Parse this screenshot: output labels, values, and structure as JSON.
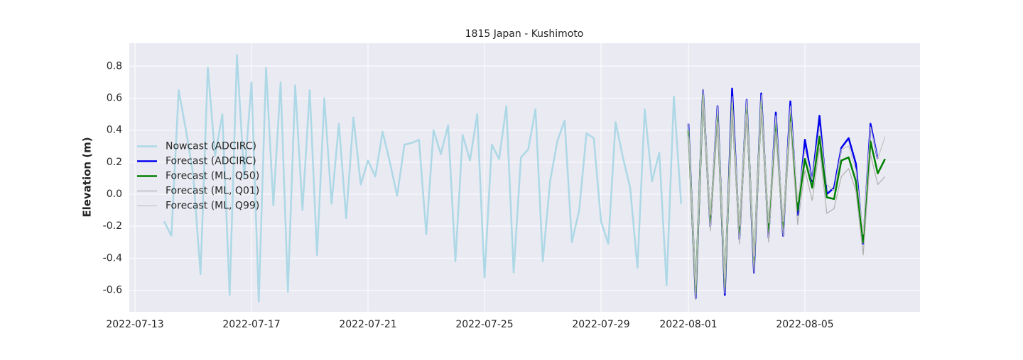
{
  "chart_data": {
    "type": "line",
    "title": "1815 Japan - Kushimoto",
    "ylabel": "Elevation (m)",
    "xlim": [
      "2022-07-12T19:19",
      "2022-08-08T22:48"
    ],
    "xticks": [
      "2022-07-13",
      "2022-07-17",
      "2022-07-21",
      "2022-07-25",
      "2022-07-29",
      "2022-08-01",
      "2022-08-05"
    ],
    "ylim": [
      -0.735,
      0.943
    ],
    "yticks": [
      -0.6,
      -0.4,
      -0.2,
      {
        "value": 0,
        "label": "0.0"
      },
      0.2,
      0.4,
      0.6,
      0.8
    ],
    "grid": true,
    "legend": "center left",
    "series": [
      {
        "name": "Nowcast (ADCIRC)",
        "color": "#add8e6",
        "linewidth": 2.5,
        "x": [
          "2022-07-14T00:00",
          "2022-07-14T06:00",
          "2022-07-14T12:00",
          "2022-07-14T18:00",
          "2022-07-15T00:00",
          "2022-07-15T06:00",
          "2022-07-15T12:00",
          "2022-07-15T18:00",
          "2022-07-16T00:00",
          "2022-07-16T06:00",
          "2022-07-16T12:00",
          "2022-07-16T18:00",
          "2022-07-17T00:00",
          "2022-07-17T06:00",
          "2022-07-17T12:00",
          "2022-07-17T18:00",
          "2022-07-18T00:00",
          "2022-07-18T06:00",
          "2022-07-18T12:00",
          "2022-07-18T18:00",
          "2022-07-19T00:00",
          "2022-07-19T06:00",
          "2022-07-19T12:00",
          "2022-07-19T18:00",
          "2022-07-20T00:00",
          "2022-07-20T06:00",
          "2022-07-20T12:00",
          "2022-07-20T18:00",
          "2022-07-21T00:00",
          "2022-07-21T06:00",
          "2022-07-21T12:00",
          "2022-07-21T18:00",
          "2022-07-22T00:00",
          "2022-07-22T06:00",
          "2022-07-22T12:00",
          "2022-07-22T18:00",
          "2022-07-23T00:00",
          "2022-07-23T06:00",
          "2022-07-23T12:00",
          "2022-07-23T18:00",
          "2022-07-24T00:00",
          "2022-07-24T06:00",
          "2022-07-24T12:00",
          "2022-07-24T18:00",
          "2022-07-25T00:00",
          "2022-07-25T06:00",
          "2022-07-25T12:00",
          "2022-07-25T18:00",
          "2022-07-26T00:00",
          "2022-07-26T06:00",
          "2022-07-26T12:00",
          "2022-07-26T18:00",
          "2022-07-27T00:00",
          "2022-07-27T06:00",
          "2022-07-27T12:00",
          "2022-07-27T18:00",
          "2022-07-28T00:00",
          "2022-07-28T06:00",
          "2022-07-28T12:00",
          "2022-07-28T18:00",
          "2022-07-29T00:00",
          "2022-07-29T06:00",
          "2022-07-29T12:00",
          "2022-07-29T18:00",
          "2022-07-30T00:00",
          "2022-07-30T06:00",
          "2022-07-30T12:00",
          "2022-07-30T18:00",
          "2022-07-31T00:00",
          "2022-07-31T06:00",
          "2022-07-31T12:00",
          "2022-07-31T18:00"
        ],
        "values": [
          -0.17,
          -0.26,
          0.65,
          0.4,
          0.12,
          -0.5,
          0.79,
          0.24,
          0.5,
          -0.63,
          0.87,
          0.1,
          0.7,
          -0.67,
          0.79,
          -0.07,
          0.7,
          -0.61,
          0.68,
          -0.1,
          0.65,
          -0.38,
          0.6,
          -0.06,
          0.44,
          -0.15,
          0.48,
          0.06,
          0.21,
          0.11,
          0.39,
          0.2,
          -0.01,
          0.31,
          0.32,
          0.34,
          -0.25,
          0.4,
          0.25,
          0.43,
          -0.42,
          0.37,
          0.21,
          0.5,
          -0.52,
          0.31,
          0.22,
          0.55,
          -0.49,
          0.23,
          0.28,
          0.53,
          -0.42,
          0.08,
          0.33,
          0.46,
          -0.3,
          -0.1,
          0.38,
          0.35,
          -0.17,
          -0.31,
          0.45,
          0.23,
          0.04,
          -0.46,
          0.53,
          0.08,
          0.26,
          -0.57,
          0.61,
          -0.06
        ]
      },
      {
        "name": "Forecast (ADCIRC)",
        "color": "#0000ee",
        "linewidth": 2.5,
        "x": [
          "2022-08-01T00:00",
          "2022-08-01T06:00",
          "2022-08-01T12:00",
          "2022-08-01T18:00",
          "2022-08-02T00:00",
          "2022-08-02T06:00",
          "2022-08-02T12:00",
          "2022-08-02T18:00",
          "2022-08-03T00:00",
          "2022-08-03T06:00",
          "2022-08-03T12:00",
          "2022-08-03T18:00",
          "2022-08-04T00:00",
          "2022-08-04T06:00",
          "2022-08-04T12:00",
          "2022-08-04T18:00",
          "2022-08-05T00:00",
          "2022-08-05T06:00",
          "2022-08-05T12:00",
          "2022-08-05T18:00",
          "2022-08-06T00:00",
          "2022-08-06T06:00",
          "2022-08-06T12:00",
          "2022-08-06T18:00",
          "2022-08-07T00:00",
          "2022-08-07T06:00",
          "2022-08-07T12:00"
        ],
        "values": [
          0.44,
          -0.65,
          0.65,
          -0.2,
          0.55,
          -0.63,
          0.66,
          -0.28,
          0.59,
          -0.49,
          0.63,
          -0.27,
          0.51,
          -0.26,
          0.58,
          -0.13,
          0.34,
          0.08,
          0.49,
          0.0,
          0.04,
          0.29,
          0.35,
          0.19,
          -0.31,
          0.44,
          0.22
        ]
      },
      {
        "name": "Forecast (ML, Q50)",
        "color": "#008000",
        "linewidth": 2.5,
        "x": [
          "2022-08-01T00:00",
          "2022-08-01T06:00",
          "2022-08-01T12:00",
          "2022-08-01T18:00",
          "2022-08-02T00:00",
          "2022-08-02T06:00",
          "2022-08-02T12:00",
          "2022-08-02T18:00",
          "2022-08-03T00:00",
          "2022-08-03T06:00",
          "2022-08-03T12:00",
          "2022-08-03T18:00",
          "2022-08-04T00:00",
          "2022-08-04T06:00",
          "2022-08-04T12:00",
          "2022-08-04T18:00",
          "2022-08-05T00:00",
          "2022-08-05T06:00",
          "2022-08-05T12:00",
          "2022-08-05T18:00",
          "2022-08-06T00:00",
          "2022-08-06T06:00",
          "2022-08-06T12:00",
          "2022-08-06T18:00",
          "2022-08-07T00:00",
          "2022-08-07T06:00",
          "2022-08-07T12:00",
          "2022-08-07T18:00"
        ],
        "values": [
          0.4,
          -0.62,
          0.62,
          -0.18,
          0.5,
          -0.58,
          0.57,
          -0.25,
          0.55,
          -0.44,
          0.58,
          -0.23,
          0.44,
          -0.22,
          0.5,
          -0.1,
          0.22,
          0.04,
          0.36,
          -0.02,
          -0.03,
          0.21,
          0.23,
          0.08,
          -0.3,
          0.33,
          0.13,
          0.22
        ]
      },
      {
        "name": "Forecast (ML, Q01)",
        "color": "#b0b0b0",
        "linewidth": 1.2,
        "x": [
          "2022-08-01T00:00",
          "2022-08-01T06:00",
          "2022-08-01T12:00",
          "2022-08-01T18:00",
          "2022-08-02T00:00",
          "2022-08-02T06:00",
          "2022-08-02T12:00",
          "2022-08-02T18:00",
          "2022-08-03T00:00",
          "2022-08-03T06:00",
          "2022-08-03T12:00",
          "2022-08-03T18:00",
          "2022-08-04T00:00",
          "2022-08-04T06:00",
          "2022-08-04T12:00",
          "2022-08-04T18:00",
          "2022-08-05T00:00",
          "2022-08-05T06:00",
          "2022-08-05T12:00",
          "2022-08-05T18:00",
          "2022-08-06T00:00",
          "2022-08-06T06:00",
          "2022-08-06T12:00",
          "2022-08-06T18:00",
          "2022-08-07T00:00",
          "2022-08-07T06:00",
          "2022-08-07T12:00",
          "2022-08-07T18:00"
        ],
        "values": [
          0.36,
          -0.66,
          0.57,
          -0.23,
          0.45,
          -0.62,
          0.52,
          -0.31,
          0.5,
          -0.49,
          0.53,
          -0.3,
          0.39,
          -0.26,
          0.45,
          -0.19,
          0.15,
          -0.04,
          0.29,
          -0.12,
          -0.09,
          0.11,
          0.16,
          0.02,
          -0.38,
          0.25,
          0.06,
          0.11
        ]
      },
      {
        "name": "Forecast (ML, Q99)",
        "color": "#c4c4c4",
        "linewidth": 1.2,
        "x": [
          "2022-08-01T00:00",
          "2022-08-01T06:00",
          "2022-08-01T12:00",
          "2022-08-01T18:00",
          "2022-08-02T00:00",
          "2022-08-02T06:00",
          "2022-08-02T12:00",
          "2022-08-02T18:00",
          "2022-08-03T00:00",
          "2022-08-03T06:00",
          "2022-08-03T12:00",
          "2022-08-03T18:00",
          "2022-08-04T00:00",
          "2022-08-04T06:00",
          "2022-08-04T12:00",
          "2022-08-04T18:00",
          "2022-08-05T00:00",
          "2022-08-05T06:00",
          "2022-08-05T12:00",
          "2022-08-05T18:00",
          "2022-08-06T00:00",
          "2022-08-06T06:00",
          "2022-08-06T12:00",
          "2022-08-06T18:00",
          "2022-08-07T00:00",
          "2022-08-07T06:00",
          "2022-08-07T12:00",
          "2022-08-07T18:00"
        ],
        "values": [
          0.44,
          -0.57,
          0.66,
          -0.13,
          0.55,
          -0.53,
          0.61,
          -0.2,
          0.59,
          -0.39,
          0.62,
          -0.18,
          0.49,
          -0.17,
          0.55,
          -0.05,
          0.28,
          0.09,
          0.42,
          0.06,
          0.02,
          0.28,
          0.3,
          0.15,
          -0.25,
          0.42,
          0.22,
          0.36
        ]
      }
    ]
  }
}
